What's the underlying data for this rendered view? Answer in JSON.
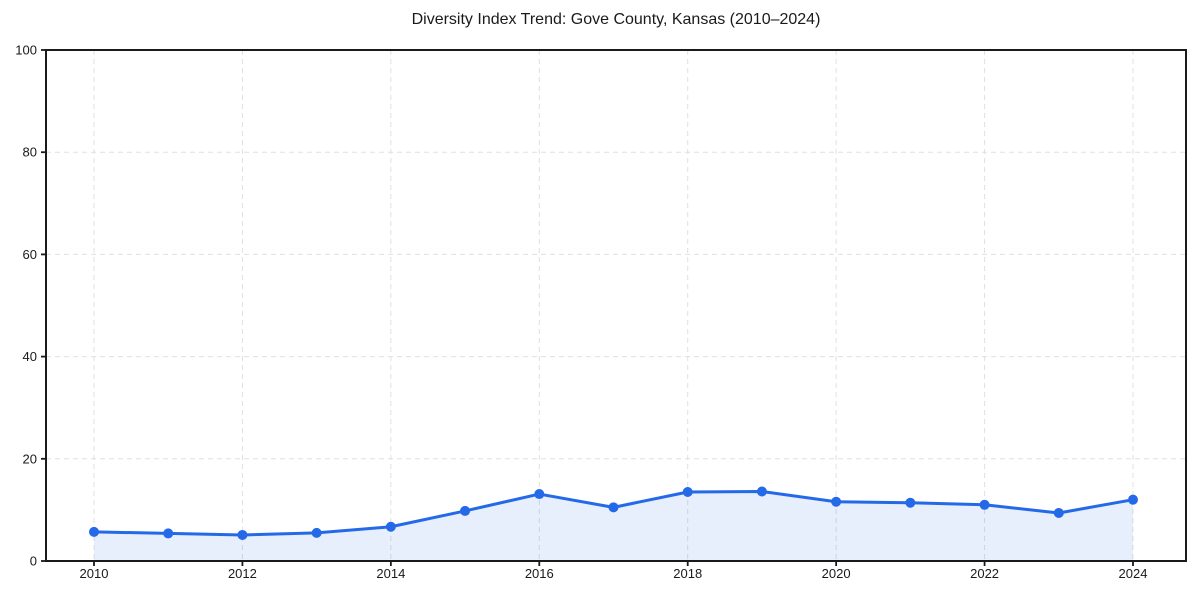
{
  "chart_data": {
    "type": "area",
    "title": "Diversity Index Trend: Gove County, Kansas (2010–2024)",
    "x": [
      2010,
      2011,
      2012,
      2013,
      2014,
      2015,
      2016,
      2017,
      2018,
      2019,
      2020,
      2021,
      2022,
      2023,
      2024
    ],
    "series": [
      {
        "name": "Diversity Index",
        "values": [
          5.7,
          5.4,
          5.1,
          5.5,
          6.7,
          9.8,
          13.1,
          10.5,
          13.5,
          13.6,
          11.6,
          11.4,
          11.0,
          9.4,
          12.0
        ]
      }
    ],
    "xlabel": "",
    "ylabel": "",
    "ylim": [
      0,
      100
    ],
    "yticks": [
      0,
      20,
      40,
      60,
      80,
      100
    ],
    "xticks": [
      2010,
      2012,
      2014,
      2016,
      2018,
      2020,
      2022,
      2024
    ],
    "grid": true,
    "grid_style": "dashed",
    "legend": false,
    "marker": "circle",
    "colors": {
      "line": "#2469e7",
      "marker": "#2469e7",
      "fill": "rgba(36, 105, 231, 0.11)",
      "grid": "#e0e0e0",
      "axis": "#1a1a1a",
      "text": "#1a1a1a",
      "background": "#ffffff"
    }
  }
}
